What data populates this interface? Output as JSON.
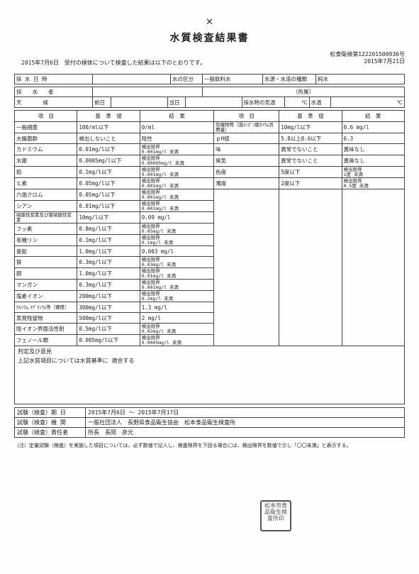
{
  "title": "水質検査結果書",
  "intro_date": "2015年7月6日",
  "intro_text": "受付の検体について検査した結果は以下のとおりです。",
  "doc_number": "松食衛検第122201500936号",
  "doc_date": "2015年7月21日",
  "header": {
    "sampling_datetime_label": "採 水 日 時",
    "water_class_label": "水の区分",
    "water_class": "一般飲料水",
    "source_type_label": "水源・水道の種類",
    "source_type": "純水",
    "sampler_label": "採　　水　　者",
    "affiliation": "（所属）",
    "weather_label": "天　　　　候",
    "prev_day": "前日",
    "today": "当日",
    "temp_label": "採水時の気温",
    "temp_unit": "℃",
    "water_temp_label": "水温",
    "water_temp_unit": "℃"
  },
  "cols": {
    "item": "項　目",
    "standard": "基　準　値",
    "result": "結　果"
  },
  "rows_left": [
    {
      "item": "一般細菌",
      "std": "100/ml以下",
      "res": "0/ml"
    },
    {
      "item": "大腸菌群",
      "std": "検出しないこと",
      "res": "陰性"
    },
    {
      "item": "カドミウム",
      "std": "0.01mg/l以下",
      "res": "検出限界\n0.001mg/l 未満"
    },
    {
      "item": "水銀",
      "std": "0.0005mg/l以下",
      "res": "検出限界\n0.00005mg/l 未満"
    },
    {
      "item": "鉛",
      "std": "0.1mg/l以下",
      "res": "検出限界\n0.001mg/l 未満"
    },
    {
      "item": "ヒ素",
      "std": "0.05mg/l以下",
      "res": "検出限界\n0.001mg/l 未満"
    },
    {
      "item": "六価クロム",
      "std": "0.05mg/l以下",
      "res": "検出限界\n0.001mg/l 未満"
    },
    {
      "item": "シアン",
      "std": "0.01mg/l以下",
      "res": "検出限界\n0.001mg/l 未満"
    },
    {
      "item": "硝酸性窒素及び亜硝酸性窒素",
      "std": "10mg/l以下",
      "res": "0.09 mg/l"
    },
    {
      "item": "フッ素",
      "std": "0.8mg/l以下",
      "res": "検出限界\n0.05mg/l 未満"
    },
    {
      "item": "有機リン",
      "std": "0.1mg/l以下",
      "res": "検出限界\n0.1mg/l 未満"
    },
    {
      "item": "亜鉛",
      "std": "1.0mg/l以下",
      "res": "0.003 mg/l"
    },
    {
      "item": "鉄",
      "std": "0.3mg/l以下",
      "res": "検出限界\n0.03mg/l 未満"
    },
    {
      "item": "銅",
      "std": "1.0mg/l以下",
      "res": "検出限界\n0.01mg/l 未満"
    },
    {
      "item": "マンガン",
      "std": "0.3mg/l以下",
      "res": "検出限界\n0.001mg/l 未満"
    },
    {
      "item": "塩素イオン",
      "std": "200mg/l以下",
      "res": "検出限界\n0.2mg/l 未満"
    },
    {
      "item": "ｶﾙｼｳﾑ､ﾏｸﾞﾈｼｳﾑ等（硬度）",
      "std": "300mg/l以下",
      "res": "1.3 mg/l"
    },
    {
      "item": "蒸発残留物",
      "std": "500mg/l以下",
      "res": "2 mg/l"
    },
    {
      "item": "陰イオン界面活性剤",
      "std": "0.5mg/l以下",
      "res": "検出限界\n0.02mg/l 未満"
    },
    {
      "item": "フェノール類",
      "std": "0.005mg/l以下",
      "res": "検出限界\n0.0005mg/l 未満"
    }
  ],
  "rows_right": [
    {
      "item": "有機物等（過ﾏﾝｶﾞﾝ酸ｶﾘｳﾑ消費量）",
      "std": "10mg/l以下",
      "res": "0.6 mg/l"
    },
    {
      "item": "ｐH値",
      "std": "5.8以上8.6以下",
      "res": "6.3"
    },
    {
      "item": "味",
      "std": "異常でないこと",
      "res": "異味なし"
    },
    {
      "item": "臭気",
      "std": "異常でないこと",
      "res": "異臭なし"
    },
    {
      "item": "色度",
      "std": "5度以下",
      "res": "検出限界\n1度 未満"
    },
    {
      "item": "濁度",
      "std": "2度以下",
      "res": "検出限界\n0.5度 未満"
    }
  ],
  "judgement_label": "判定及び意見",
  "judgement_text": "上記水質項目については水質基準に 適合する",
  "footer": {
    "test_period_label": "試験（検査）期 日",
    "test_period": "2015年7月6日 ～ 2015年7月17日",
    "org_label": "試験（検査）機 関",
    "org": "一般社団法人　長野県食品衛生協会　松本食品衛生検査所",
    "resp_label": "試験（検査）責任者",
    "resp": "所長　長岡　彦光"
  },
  "footnote": "（注）定量試験（検査）を実施した項目については、必ず数値で記入し、検査限界を下回る場合には、検出限界を数値で示し「〇〇未満」と表示する。",
  "stamp_text": "松本市食品衛生検査所印"
}
